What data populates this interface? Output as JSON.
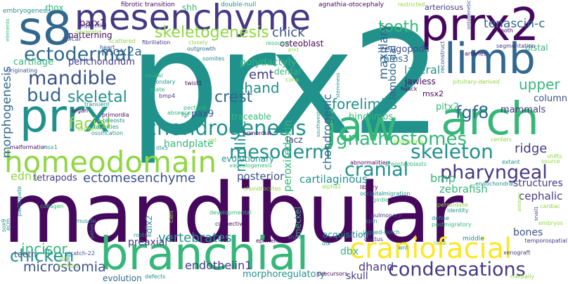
{
  "colors": {
    "dark_purple": "#46085c",
    "indigo": "#443a83",
    "blue": "#31688e",
    "teal": "#21918c",
    "green": "#35b779",
    "lime": "#90d743",
    "yellow": "#fde725",
    "navy": "#3b528b"
  },
  "words": [
    {
      "text": "mandibular",
      "color": "dark_purple"
    },
    {
      "text": "prx2",
      "color": "teal"
    },
    {
      "text": "branchial",
      "color": "green"
    },
    {
      "text": "mesenchyme",
      "color": "indigo"
    },
    {
      "text": "prrx2",
      "color": "dark_purple"
    },
    {
      "text": "s8",
      "color": "blue"
    },
    {
      "text": "limb",
      "color": "blue"
    },
    {
      "text": "jaw",
      "color": "green"
    },
    {
      "text": "arch",
      "color": "green"
    },
    {
      "text": "prrx",
      "color": "teal"
    },
    {
      "text": "homeodomain",
      "color": "lime"
    },
    {
      "text": "craniofacial",
      "color": "yellow"
    },
    {
      "text": "chondrogenesis",
      "color": "teal"
    },
    {
      "text": "skeleton",
      "color": "teal"
    },
    {
      "text": "mesoderm",
      "color": "teal"
    },
    {
      "text": "ectodermal",
      "color": "blue"
    },
    {
      "text": "mandible",
      "color": "navy"
    },
    {
      "text": "condensations",
      "color": "indigo"
    },
    {
      "text": "pharyngeal",
      "color": "indigo"
    },
    {
      "text": "cranial",
      "color": "teal"
    },
    {
      "text": "bud",
      "color": "blue"
    },
    {
      "text": "skeletogenesis",
      "color": "lime"
    },
    {
      "text": "fgf8",
      "color": "blue"
    },
    {
      "text": "tooth",
      "color": "green"
    },
    {
      "text": "chicken",
      "color": "teal"
    },
    {
      "text": "microstomia",
      "color": "navy"
    },
    {
      "text": "incisor",
      "color": "green"
    },
    {
      "text": "facial",
      "color": "lime"
    },
    {
      "text": "vertebrates",
      "color": "teal"
    },
    {
      "text": "ectomesenchyme",
      "color": "navy"
    },
    {
      "text": "crest",
      "color": "blue"
    },
    {
      "text": "forelimbs",
      "color": "teal"
    },
    {
      "text": "gnathostomes",
      "color": "green"
    },
    {
      "text": "morphogenesis",
      "color": "blue"
    },
    {
      "text": "skeletal",
      "color": "teal"
    },
    {
      "text": "mox2a",
      "color": "blue"
    },
    {
      "text": "chick",
      "color": "navy"
    },
    {
      "text": "ehand",
      "color": "teal"
    },
    {
      "text": "emt",
      "color": "indigo"
    },
    {
      "text": "midline",
      "color": "teal"
    },
    {
      "text": "chondrogenic",
      "color": "blue"
    },
    {
      "text": "dhand",
      "color": "indigo"
    },
    {
      "text": "endothelin1",
      "color": "indigo"
    },
    {
      "text": "posterior",
      "color": "navy"
    },
    {
      "text": "ridge",
      "color": "indigo"
    },
    {
      "text": "upper",
      "color": "green"
    },
    {
      "text": "tenascin-c",
      "color": "blue"
    },
    {
      "text": "zeugopods",
      "color": "navy"
    },
    {
      "text": "rbms3",
      "color": "blue"
    },
    {
      "text": "lateral",
      "color": "teal"
    },
    {
      "text": "polydactyly",
      "color": "green"
    },
    {
      "text": "handplate",
      "color": "green"
    },
    {
      "text": "maxillary",
      "color": "blue"
    },
    {
      "text": "lambdoidal",
      "color": "blue"
    },
    {
      "text": "cartilaginous",
      "color": "teal"
    },
    {
      "text": "peroxiredoxin",
      "color": "green"
    },
    {
      "text": "hindlimbs",
      "color": "green"
    },
    {
      "text": "preaxial",
      "color": "indigo"
    },
    {
      "text": "evolutionary",
      "color": "teal"
    },
    {
      "text": "tetrapods",
      "color": "indigo"
    },
    {
      "text": "edn1",
      "color": "lime"
    },
    {
      "text": "bmp",
      "color": "green"
    },
    {
      "text": "zebrafish",
      "color": "green"
    },
    {
      "text": "cephalic",
      "color": "indigo"
    },
    {
      "text": "bones",
      "color": "navy"
    },
    {
      "text": "structures",
      "color": "indigo"
    },
    {
      "text": "skull",
      "color": "indigo"
    },
    {
      "text": "morphoregulatory",
      "color": "teal"
    },
    {
      "text": "dbx",
      "color": "green"
    },
    {
      "text": "pitx2",
      "color": "green"
    },
    {
      "text": "mammals",
      "color": "indigo"
    },
    {
      "text": "column",
      "color": "navy"
    },
    {
      "text": "cartilage",
      "color": "green"
    },
    {
      "text": "perichondrium",
      "color": "indigo"
    },
    {
      "text": "patterning",
      "color": "dark_purple"
    },
    {
      "text": "barx1",
      "color": "dark_purple"
    },
    {
      "text": "shh",
      "color": "green"
    },
    {
      "text": "rhox",
      "color": "green"
    },
    {
      "text": "osteoblast",
      "color": "dark_purple"
    },
    {
      "text": "arteriosus",
      "color": "indigo"
    },
    {
      "text": "pax9",
      "color": "navy"
    },
    {
      "text": "dental",
      "color": "green"
    },
    {
      "text": "jawless",
      "color": "dark_purple"
    },
    {
      "text": "msx2",
      "color": "dark_purple"
    },
    {
      "text": "traceable",
      "color": "green"
    },
    {
      "text": "acquisition",
      "color": "teal"
    },
    {
      "text": "lacz",
      "color": "indigo"
    },
    {
      "text": "meckel",
      "color": "green"
    },
    {
      "text": "distal",
      "color": "green"
    },
    {
      "text": "teeth",
      "color": "navy"
    },
    {
      "text": "evolution",
      "color": "blue"
    },
    {
      "text": "dlx2",
      "color": "teal"
    },
    {
      "text": "fibrotic",
      "color": "dark_purple"
    },
    {
      "text": "transition",
      "color": "dark_purple"
    },
    {
      "text": "double-null",
      "color": "teal"
    },
    {
      "text": "agnathia-otocephaly",
      "color": "dark_purple"
    },
    {
      "text": "restricted",
      "color": "lime"
    },
    {
      "text": "embryogenesis",
      "color": "teal"
    },
    {
      "text": "elements",
      "color": "green"
    },
    {
      "text": "apical",
      "color": "navy"
    },
    {
      "text": "severely",
      "color": "lime"
    },
    {
      "text": "sequential",
      "color": "indigo"
    },
    {
      "text": "scattered",
      "color": "lime"
    },
    {
      "text": "heart",
      "color": "navy"
    },
    {
      "text": "fibrillation",
      "color": "indigo"
    },
    {
      "text": "closely",
      "color": "lime"
    },
    {
      "text": "outgrowth",
      "color": "blue"
    },
    {
      "text": "resource",
      "color": "green"
    },
    {
      "text": "somites",
      "color": "teal"
    },
    {
      "text": "smooth",
      "color": "dark_purple"
    },
    {
      "text": "ontogenetic",
      "color": "navy"
    },
    {
      "text": "segmentation",
      "color": "indigo"
    },
    {
      "text": "arteries",
      "color": "dark_purple"
    },
    {
      "text": "reconstruct",
      "color": "navy"
    },
    {
      "text": "pituitary-derived",
      "color": "lime"
    },
    {
      "text": "hijack",
      "color": "dark_purple"
    },
    {
      "text": "originating",
      "color": "navy"
    },
    {
      "text": "neural",
      "color": "green"
    },
    {
      "text": "secondary",
      "color": "teal"
    },
    {
      "text": "twist1",
      "color": "dark_purple"
    },
    {
      "text": "plate",
      "color": "green"
    },
    {
      "text": "bmp4",
      "color": "indigo"
    },
    {
      "text": "transient",
      "color": "teal"
    },
    {
      "text": "pectoral",
      "color": "green"
    },
    {
      "text": "absence",
      "color": "green"
    },
    {
      "text": "fgf",
      "color": "teal"
    },
    {
      "text": "organ",
      "color": "dark_purple"
    },
    {
      "text": "primordia",
      "color": "dark_purple"
    },
    {
      "text": "septum",
      "color": "lime"
    },
    {
      "text": "teleosts",
      "color": "teal"
    },
    {
      "text": "properties",
      "color": "teal"
    },
    {
      "text": "ossification",
      "color": "teal"
    },
    {
      "text": "primordial",
      "color": "dark_purple"
    },
    {
      "text": "malformation",
      "color": "dark_purple"
    },
    {
      "text": "msx1",
      "color": "teal"
    },
    {
      "text": "dlx5",
      "color": "teal"
    },
    {
      "text": "prompting",
      "color": "lime"
    },
    {
      "text": "set",
      "color": "lime"
    },
    {
      "text": "vasculogenesis",
      "color": "green"
    },
    {
      "text": "southwestern",
      "color": "teal"
    },
    {
      "text": "abnormalities",
      "color": "dark_purple"
    },
    {
      "text": "preosteoblasts",
      "color": "green"
    },
    {
      "text": "extant",
      "color": "teal"
    },
    {
      "text": "centers",
      "color": "lime"
    },
    {
      "text": "chondrocytes",
      "color": "lime"
    },
    {
      "text": "alpha1",
      "color": "lime"
    },
    {
      "text": "library",
      "color": "dark_purple"
    },
    {
      "text": "occipital",
      "color": "teal"
    },
    {
      "text": "migration",
      "color": "teal"
    },
    {
      "text": "girdle",
      "color": "green"
    },
    {
      "text": "peroxidase",
      "color": "lime"
    },
    {
      "text": "endochondral",
      "color": "teal"
    },
    {
      "text": "collagen",
      "color": "green"
    },
    {
      "text": "participate",
      "color": "teal"
    },
    {
      "text": "ecm",
      "color": "teal"
    },
    {
      "text": "sox9",
      "color": "teal"
    },
    {
      "text": "muscle",
      "color": "teal"
    },
    {
      "text": "developmental",
      "color": "green"
    },
    {
      "text": "cleft",
      "color": "lime"
    },
    {
      "text": "connective",
      "color": "dark_purple"
    },
    {
      "text": "pelvis",
      "color": "teal"
    },
    {
      "text": "rostral",
      "color": "teal"
    },
    {
      "text": "pulmonary",
      "color": "indigo"
    },
    {
      "text": "spin",
      "color": "teal"
    },
    {
      "text": "identity",
      "color": "teal"
    },
    {
      "text": "define",
      "color": "teal"
    },
    {
      "text": "postmigratory",
      "color": "green"
    },
    {
      "text": "anterior",
      "color": "lime"
    },
    {
      "text": "snail1",
      "color": "indigo"
    },
    {
      "text": "cardiac",
      "color": "lime"
    },
    {
      "text": "embryos",
      "color": "lime"
    },
    {
      "text": "temporospatial",
      "color": "indigo"
    },
    {
      "text": "middle",
      "color": "teal"
    },
    {
      "text": "ductus",
      "color": "indigo"
    },
    {
      "text": "jagged-notch",
      "color": "teal"
    },
    {
      "text": "trunk",
      "color": "teal"
    },
    {
      "text": "epithelium",
      "color": "dark_purple"
    },
    {
      "text": "dlx",
      "color": "teal"
    },
    {
      "text": "wnt",
      "color": "teal"
    },
    {
      "text": "sox2",
      "color": "lime"
    },
    {
      "text": "xenograft",
      "color": "indigo"
    },
    {
      "text": "catch-22",
      "color": "navy"
    },
    {
      "text": "outflow",
      "color": "lime"
    },
    {
      "text": "digit",
      "color": "teal"
    },
    {
      "text": "defects",
      "color": "teal"
    },
    {
      "text": "precursors",
      "color": "dark_purple"
    },
    {
      "text": "medially",
      "color": "lime"
    },
    {
      "text": "shifts",
      "color": "lime"
    },
    {
      "text": "source",
      "color": "lime"
    },
    {
      "text": "cona",
      "color": "lime"
    },
    {
      "text": "steminess",
      "color": "teal"
    },
    {
      "text": "prx1",
      "color": "lime"
    },
    {
      "text": "il1s",
      "color": "teal"
    },
    {
      "text": "ebs",
      "color": "lime"
    }
  ]
}
